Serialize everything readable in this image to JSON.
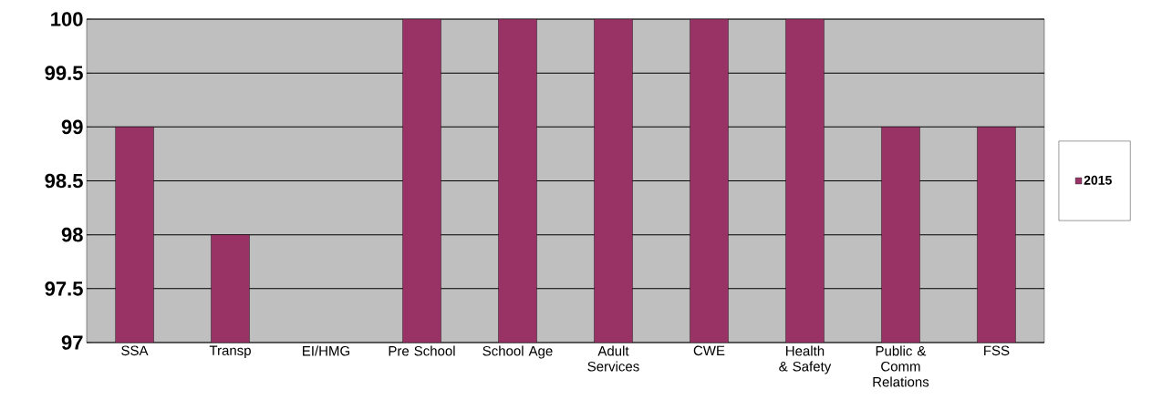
{
  "chart_data": {
    "type": "bar",
    "categories": [
      "SSA",
      "Transp",
      "EI/HMG",
      "Pre School",
      "School Age",
      "Adult Services",
      "CWE",
      "Health & Safety",
      "Public & Comm Relations",
      "FSS"
    ],
    "series": [
      {
        "name": "2015",
        "color": "#993366",
        "values": [
          99,
          98,
          null,
          100,
          100,
          100,
          100,
          100,
          99,
          99
        ]
      }
    ],
    "ylim": [
      97,
      100
    ],
    "yticks": [
      97,
      97.5,
      98,
      98.5,
      99,
      99.5,
      100
    ],
    "grid": "y",
    "legend": "right"
  }
}
